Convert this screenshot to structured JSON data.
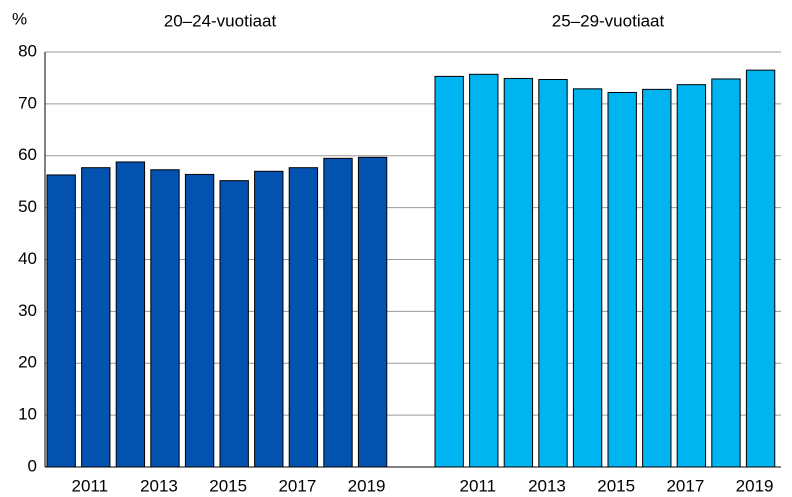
{
  "chart_data": {
    "type": "bar",
    "ylabel": "%",
    "categories": [
      null,
      "2011",
      null,
      "2013",
      null,
      "2015",
      null,
      "2017",
      null,
      "2019"
    ],
    "series": [
      {
        "name": "20–24-vuotiaat",
        "color": "#0452b0",
        "values": [
          56.3,
          57.7,
          58.8,
          57.3,
          56.4,
          55.2,
          57.0,
          57.7,
          59.5,
          59.7
        ]
      },
      {
        "name": "25–29-vuotiaat",
        "color": "#00b4f0",
        "values": [
          75.3,
          75.7,
          74.9,
          74.7,
          72.9,
          72.2,
          72.8,
          73.7,
          74.8,
          76.5
        ]
      }
    ],
    "ylim": [
      0,
      80
    ],
    "yticks": [
      0,
      10,
      20,
      30,
      40,
      50,
      60,
      70,
      80
    ],
    "grid": true
  }
}
